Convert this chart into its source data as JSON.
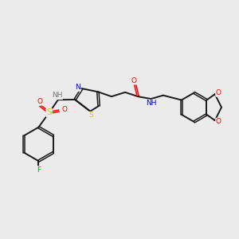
{
  "background_color": "#ebebeb",
  "bond_color": "#1a1a1a",
  "atom_colors": {
    "N": "#0000ff",
    "O": "#ff0000",
    "S": "#cccc00",
    "F": "#00aa00",
    "NH_gray": "#777777",
    "C": "#1a1a1a"
  },
  "figsize": [
    3.0,
    3.0
  ],
  "dpi": 100
}
